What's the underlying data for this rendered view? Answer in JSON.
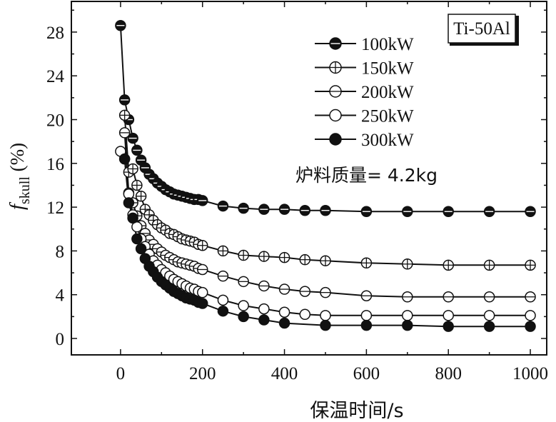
{
  "chart_data": {
    "type": "line",
    "title": "",
    "xlabel": "保温时间/s",
    "ylabel": {
      "main": "f",
      "sub": "skull",
      "unit": " (%)"
    },
    "xlim": [
      -120,
      1040
    ],
    "ylim": [
      -1.5,
      30.8
    ],
    "xticks": [
      0,
      200,
      400,
      600,
      800,
      1000
    ],
    "yticks": [
      0,
      4,
      8,
      12,
      16,
      20,
      24,
      28
    ],
    "grid": false,
    "legend_position": "top-right",
    "alloy_label": "Ti-50Al",
    "annotation": "炉料质量= 4.2kg",
    "series": [
      {
        "name": "100kW",
        "marker": "filled-circle-halfline",
        "x": [
          0,
          10,
          20,
          30,
          40,
          50,
          60,
          70,
          80,
          90,
          100,
          110,
          120,
          130,
          140,
          150,
          160,
          170,
          180,
          190,
          200,
          250,
          300,
          350,
          400,
          450,
          500,
          600,
          700,
          800,
          900,
          1000
        ],
        "y": [
          28.6,
          21.8,
          20.0,
          18.3,
          17.2,
          16.3,
          15.6,
          15.0,
          14.6,
          14.2,
          13.9,
          13.6,
          13.4,
          13.2,
          13.1,
          13.0,
          12.9,
          12.8,
          12.7,
          12.7,
          12.6,
          12.1,
          11.9,
          11.8,
          11.8,
          11.7,
          11.7,
          11.6,
          11.6,
          11.6,
          11.6,
          11.6
        ]
      },
      {
        "name": "150kW",
        "marker": "crossed-circle",
        "x": [
          10,
          20,
          30,
          40,
          50,
          60,
          70,
          80,
          90,
          100,
          110,
          120,
          130,
          140,
          150,
          160,
          170,
          180,
          190,
          200,
          250,
          300,
          350,
          400,
          450,
          500,
          600,
          700,
          800,
          900,
          1000
        ],
        "y": [
          20.4,
          15.2,
          15.5,
          14.0,
          13.0,
          11.8,
          11.3,
          10.8,
          10.4,
          10.1,
          9.9,
          9.6,
          9.5,
          9.3,
          9.1,
          9.0,
          8.9,
          8.8,
          8.6,
          8.5,
          8.0,
          7.6,
          7.5,
          7.4,
          7.2,
          7.1,
          6.9,
          6.8,
          6.7,
          6.7,
          6.7
        ]
      },
      {
        "name": "200kW",
        "marker": "open-circle-halfline",
        "x": [
          10,
          20,
          30,
          40,
          50,
          60,
          70,
          80,
          90,
          100,
          110,
          120,
          130,
          140,
          150,
          160,
          170,
          180,
          190,
          200,
          250,
          300,
          350,
          400,
          450,
          500,
          600,
          700,
          800,
          900,
          1000
        ],
        "y": [
          18.8,
          13.3,
          12.4,
          11.2,
          10.3,
          9.6,
          9.0,
          8.6,
          8.2,
          7.9,
          7.6,
          7.4,
          7.2,
          7.0,
          6.9,
          6.8,
          6.7,
          6.6,
          6.4,
          6.3,
          5.7,
          5.2,
          4.8,
          4.5,
          4.3,
          4.2,
          3.9,
          3.8,
          3.8,
          3.8,
          3.8
        ]
      },
      {
        "name": "250kW",
        "marker": "open-circle",
        "x": [
          0,
          10,
          20,
          30,
          40,
          50,
          60,
          70,
          80,
          90,
          100,
          110,
          120,
          130,
          140,
          150,
          160,
          170,
          180,
          190,
          200,
          250,
          300,
          350,
          400,
          450,
          500,
          600,
          700,
          800,
          900,
          1000
        ],
        "y": [
          17.1,
          16.4,
          13.2,
          11.3,
          10.2,
          9.1,
          8.4,
          7.7,
          7.1,
          6.7,
          6.3,
          6.0,
          5.7,
          5.4,
          5.2,
          5.0,
          4.8,
          4.6,
          4.5,
          4.3,
          4.2,
          3.5,
          3.0,
          2.7,
          2.4,
          2.2,
          2.1,
          2.1,
          2.1,
          2.1,
          2.1,
          2.1
        ]
      },
      {
        "name": "300kW",
        "marker": "filled-circle",
        "x": [
          10,
          20,
          30,
          40,
          50,
          60,
          70,
          80,
          90,
          100,
          110,
          120,
          130,
          140,
          150,
          160,
          170,
          180,
          190,
          200,
          250,
          300,
          350,
          400,
          500,
          600,
          700,
          800,
          900,
          1000
        ],
        "y": [
          16.4,
          12.4,
          11.0,
          9.1,
          8.2,
          7.3,
          6.6,
          6.1,
          5.6,
          5.2,
          4.9,
          4.6,
          4.3,
          4.1,
          3.9,
          3.7,
          3.6,
          3.5,
          3.3,
          3.2,
          2.5,
          2.0,
          1.7,
          1.4,
          1.2,
          1.2,
          1.2,
          1.1,
          1.1,
          1.1
        ]
      }
    ]
  }
}
